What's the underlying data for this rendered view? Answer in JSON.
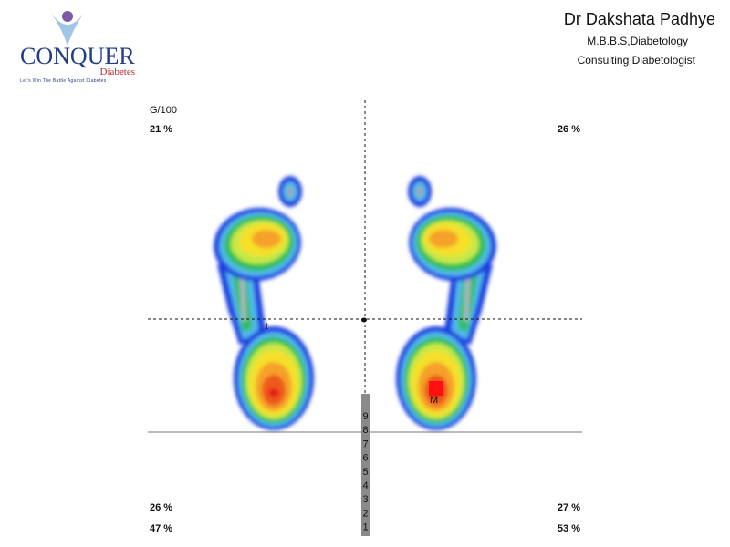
{
  "logo": {
    "name": "CONQUER",
    "sub": "Diabetes",
    "tagline": "Let's Win The Battle Against Diabetes"
  },
  "header": {
    "doctor": "Dr Dakshata Padhye",
    "degree": "M.B.B.S,Diabetology",
    "role": "Consulting Diabetologist"
  },
  "scan": {
    "unit": "G/100",
    "top_left": "21 %",
    "top_right": "26 %",
    "bottom_left": "26 %",
    "bottom_right": "27 %",
    "total_left": "47 %",
    "total_right": "53 %",
    "left_marker": "t",
    "right_marker": "M",
    "scale": [
      "9",
      "8",
      "7",
      "6",
      "5",
      "4",
      "3",
      "2",
      "1"
    ]
  }
}
